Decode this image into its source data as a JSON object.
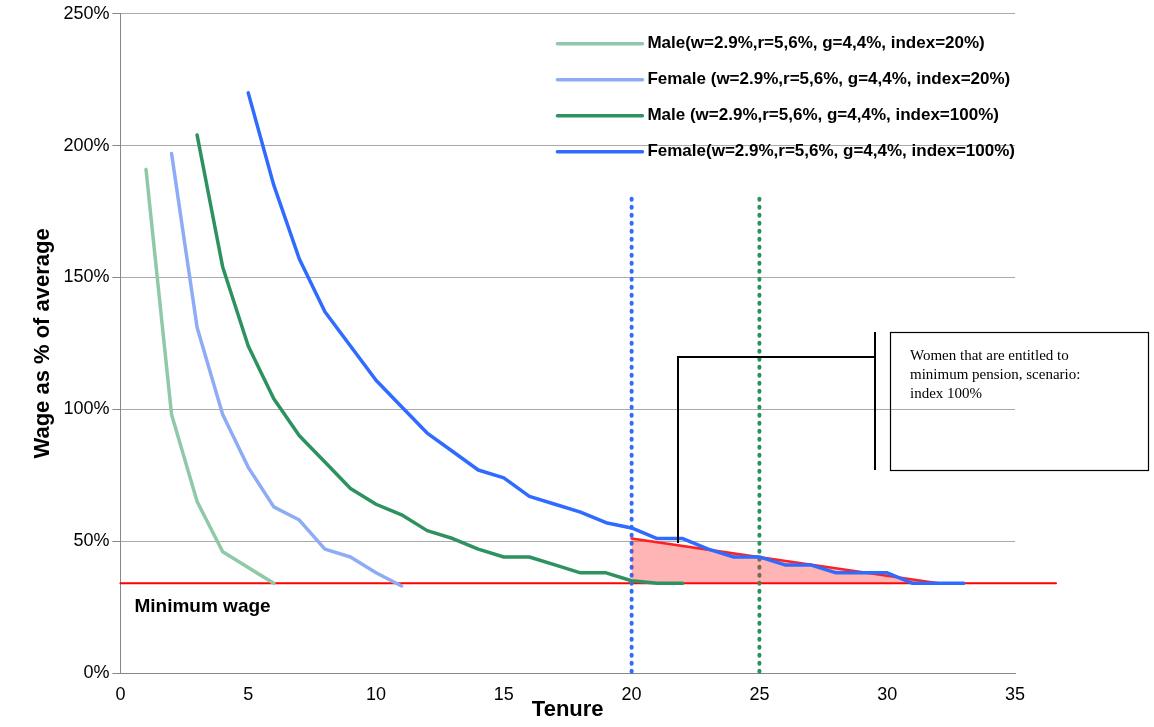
{
  "chart_data": {
    "type": "line",
    "xlabel": "Tenure",
    "ylabel": "Wage as % of average",
    "xlim": [
      0,
      35
    ],
    "xticks": [
      0,
      5,
      10,
      15,
      20,
      25,
      30,
      35
    ],
    "ylim": [
      0,
      250
    ],
    "yticks": [
      {
        "value": 0,
        "label": "0%"
      },
      {
        "value": 50,
        "label": "50%"
      },
      {
        "value": 100,
        "label": "100%"
      },
      {
        "value": 150,
        "label": "150%"
      },
      {
        "value": 200,
        "label": "200%"
      },
      {
        "value": 250,
        "label": "250%"
      }
    ],
    "grid": "y",
    "legend": "top right",
    "marker": "none",
    "line_style": "solid",
    "series": [
      {
        "name": "Male(w=2.9%,r=5,6%, g=4,4%, index=20%)",
        "color": "#8fc9a8",
        "x": [
          1,
          2,
          3,
          4,
          5,
          6
        ],
        "values": [
          191,
          98,
          65,
          46,
          40,
          34
        ]
      },
      {
        "name": "Female (w=2.9%,r=5,6%, g=4,4%, index=20%)",
        "color": "#8eacf5",
        "x": [
          2,
          3,
          4,
          5,
          6,
          7,
          8,
          9,
          10,
          11
        ],
        "values": [
          197,
          131,
          98,
          78,
          63,
          58,
          47,
          44,
          38,
          33
        ]
      },
      {
        "name": "Male (w=2.9%,r=5,6%, g=4,4%, index=100%)",
        "color": "#2e9160",
        "x": [
          3,
          4,
          5,
          6,
          7,
          8,
          9,
          10,
          11,
          12,
          13,
          14,
          15,
          16,
          17,
          18,
          19,
          20,
          21,
          22
        ],
        "values": [
          204,
          154,
          124,
          104,
          90,
          80,
          70,
          64,
          60,
          54,
          51,
          47,
          44,
          44,
          41,
          38,
          38,
          35,
          34,
          34
        ]
      },
      {
        "name": "Female(w=2.9%,r=5,6%, g=4,4%, index=100%)",
        "color": "#2f6bff",
        "x": [
          5,
          6,
          7,
          8,
          9,
          10,
          11,
          12,
          13,
          14,
          15,
          16,
          17,
          18,
          19,
          20,
          21,
          22,
          23,
          24,
          25,
          26,
          27,
          28,
          29,
          30,
          31,
          32,
          33
        ],
        "values": [
          220,
          185,
          157,
          137,
          124,
          111,
          101,
          91,
          84,
          77,
          74,
          67,
          64,
          61,
          57,
          55,
          51,
          51,
          47,
          44,
          44,
          41,
          41,
          38,
          38,
          38,
          34,
          34,
          34
        ]
      },
      {
        "type": "area",
        "color": "#ff2020",
        "x": [
          20,
          32
        ],
        "values": [
          51,
          34
        ]
      }
    ],
    "ref_lines": [
      {
        "axis": "y",
        "value": 34,
        "label": "Minimum wage",
        "color": "#ff0000",
        "line_style": "solid"
      },
      {
        "axis": "x",
        "value": 20,
        "color": "#2f6bff",
        "line_style": "dotted"
      },
      {
        "axis": "x",
        "value": 25,
        "color": "#2e9160",
        "line_style": "dotted"
      }
    ],
    "annotations": [
      "Women that are entitled to minimum pension, scenario: index 100%"
    ]
  }
}
